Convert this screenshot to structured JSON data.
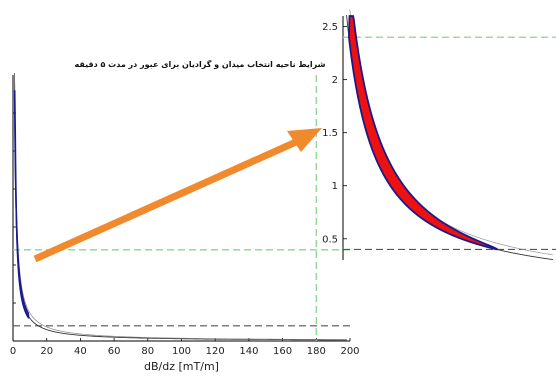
{
  "chart_data": [
    {
      "type": "line",
      "title": "شرایط ناحیه انتخاب میدان و گرادیان برای عبور در مدت ۵ دقیقه",
      "xlabel": "dB/dz [mT/m]",
      "ylabel": "",
      "xlim": [
        0,
        200
      ],
      "xticks": [
        0,
        20,
        40,
        60,
        80,
        100,
        120,
        140,
        160,
        180,
        200
      ],
      "grid": false,
      "series": [
        {
          "x": [
            1,
            2,
            3,
            4,
            6,
            8,
            10,
            15,
            20,
            30,
            40,
            60,
            80,
            100,
            140,
            200
          ],
          "y": [
            6.0,
            3.0,
            2.0,
            1.5,
            1.0,
            0.75,
            0.6,
            0.4,
            0.3,
            0.2,
            0.15,
            0.1,
            0.075,
            0.06,
            0.043,
            0.03
          ]
        }
      ],
      "highlight_band": {
        "x_from": 1,
        "x_to": 9
      },
      "reference_lines": [
        {
          "orientation": "vertical",
          "value": 180,
          "style": "dashed",
          "color": "#8fd48f"
        },
        {
          "orientation": "horizontal",
          "value": 2.4,
          "style": "dashed",
          "color": "#8fd48f"
        },
        {
          "orientation": "horizontal",
          "value": 0.4,
          "style": "dashed",
          "color": "#555555"
        }
      ]
    },
    {
      "type": "line",
      "title": "",
      "xlabel": "",
      "ylabel": "",
      "ylim": [
        0.3,
        2.6
      ],
      "yticks": [
        "0.5",
        "1",
        "1.5",
        "2",
        "2.5"
      ],
      "grid": false,
      "series": [
        {
          "x": [
            1,
            1.2,
            1.5,
            2,
            2.5,
            3,
            4,
            5,
            6
          ],
          "y": [
            2.4,
            2.0,
            1.6,
            1.2,
            0.96,
            0.8,
            0.6,
            0.48,
            0.4
          ]
        }
      ],
      "highlight_band": {
        "x_from": 1,
        "x_to": 6
      },
      "reference_lines": [
        {
          "orientation": "horizontal",
          "value": 2.4,
          "style": "dashed",
          "color": "#8fd48f"
        },
        {
          "orientation": "horizontal",
          "value": 0.4,
          "style": "dashed",
          "color": "#555555"
        }
      ]
    }
  ],
  "annotations": {
    "arrow_color": "#f08a2c",
    "band_fill": "#ee1111",
    "band_edge": "#1a1a8c"
  }
}
